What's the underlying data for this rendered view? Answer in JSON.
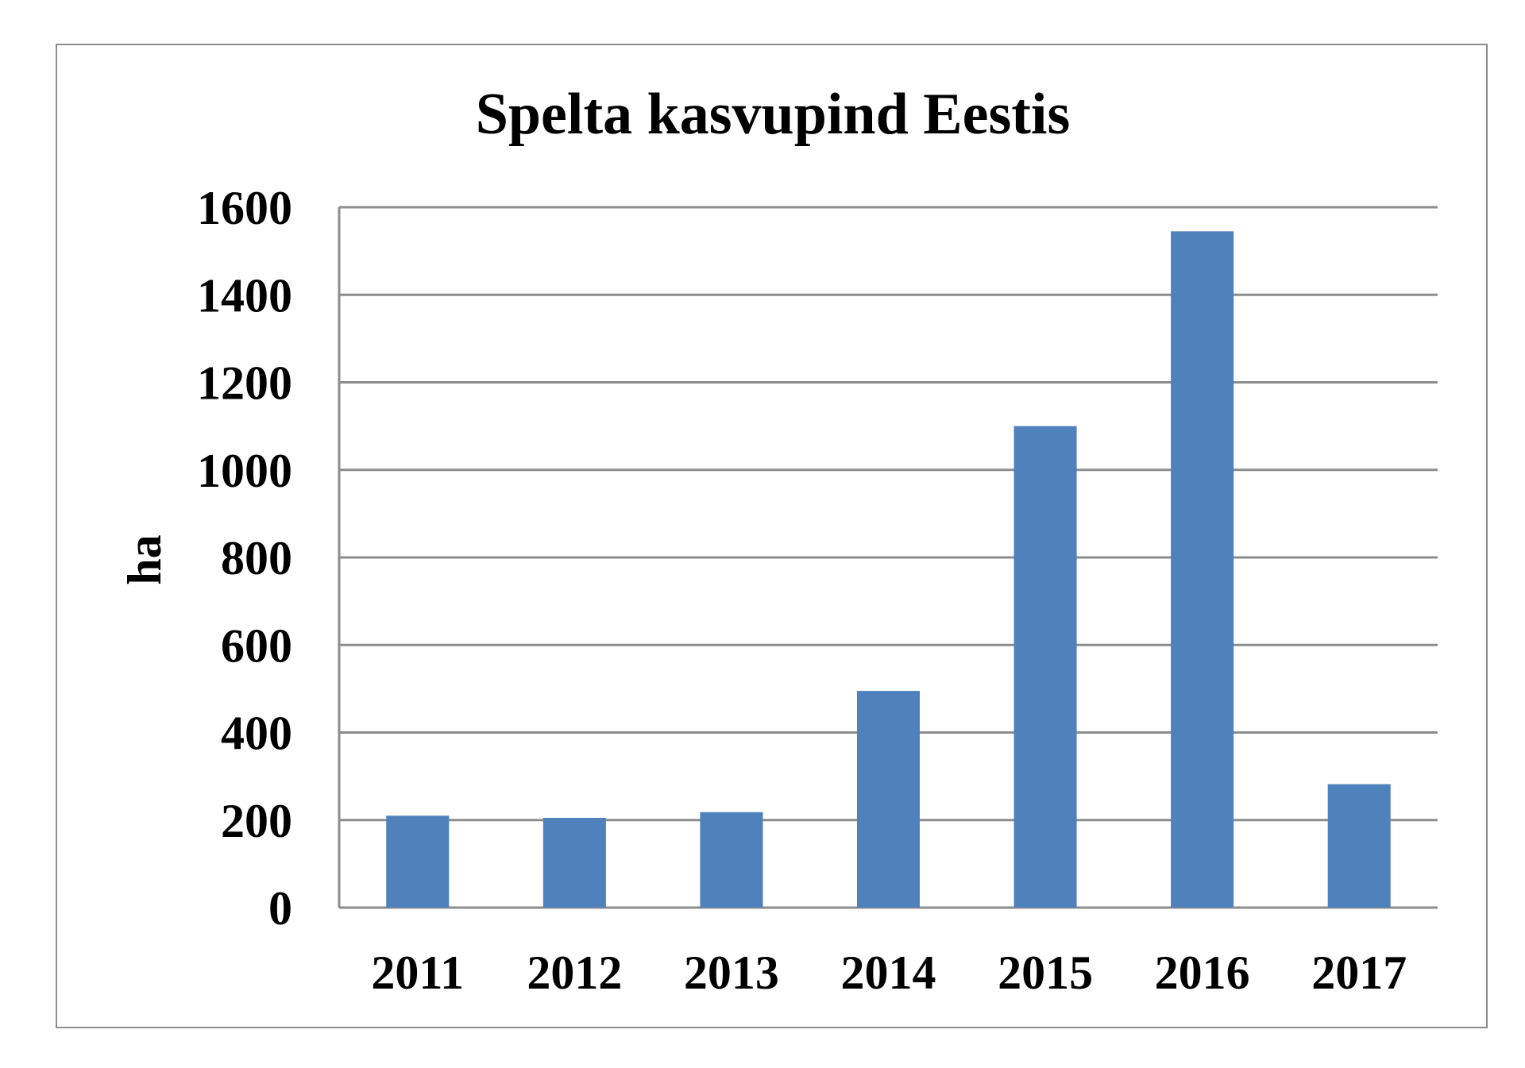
{
  "chart_data": {
    "type": "bar",
    "title": "Spelta kasvupind Eestis",
    "xlabel": "",
    "ylabel": "ha",
    "categories": [
      "2011",
      "2012",
      "2013",
      "2014",
      "2015",
      "2016",
      "2017"
    ],
    "values": [
      210,
      205,
      218,
      495,
      1100,
      1545,
      282
    ],
    "ylim": [
      0,
      1600
    ],
    "yticks": [
      0,
      200,
      400,
      600,
      800,
      1000,
      1200,
      1400,
      1600
    ],
    "grid": true,
    "legend": "none",
    "colors": {
      "bar": "#4f81bd",
      "grid": "#8c8c8c",
      "frame": "#8c8c8c"
    }
  }
}
